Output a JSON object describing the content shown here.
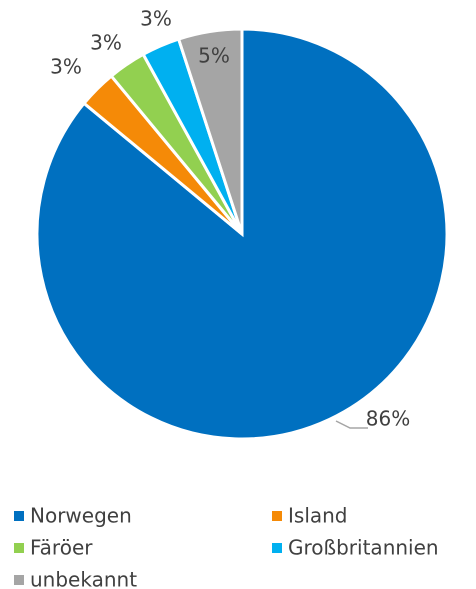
{
  "chart_data": {
    "type": "pie",
    "categories": [
      "Norwegen",
      "Island",
      "Färöer",
      "Großbritannien",
      "unbekannt"
    ],
    "values": [
      86,
      3,
      3,
      3,
      5
    ],
    "value_labels": [
      "86%",
      "3%",
      "3%",
      "3%",
      "5%"
    ],
    "colors": [
      "#0070c0",
      "#f58a07",
      "#92d050",
      "#00b0f0",
      "#a5a5a5"
    ]
  }
}
